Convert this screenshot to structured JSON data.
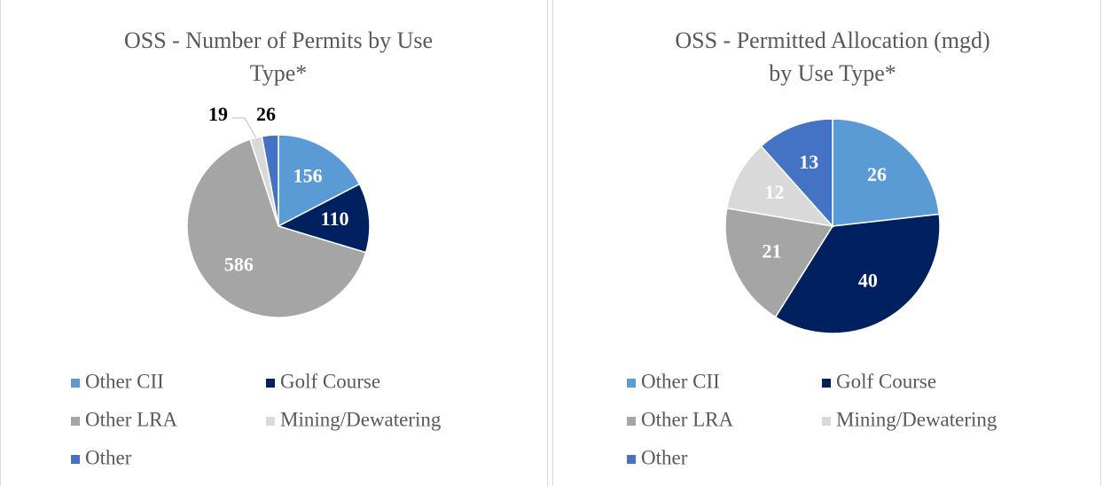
{
  "chart_data": [
    {
      "type": "pie",
      "title": [
        "OSS - Number of Permits by Use",
        "Type*"
      ],
      "categories": [
        "Other CII",
        "Golf Course",
        "Other LRA",
        "Mining/Dewatering",
        "Other"
      ],
      "values": [
        156,
        110,
        586,
        19,
        26
      ],
      "colors": [
        "#5b9bd5",
        "#002060",
        "#a5a5a5",
        "#d9d9d9",
        "#4472c4"
      ]
    },
    {
      "type": "pie",
      "title": [
        "OSS - Permitted Allocation (mgd)",
        "by Use Type*"
      ],
      "categories": [
        "Other CII",
        "Golf Course",
        "Other LRA",
        "Mining/Dewatering",
        "Other"
      ],
      "values": [
        26,
        40,
        21,
        12,
        13
      ],
      "colors": [
        "#5b9bd5",
        "#002060",
        "#a5a5a5",
        "#d9d9d9",
        "#4472c4"
      ]
    }
  ]
}
